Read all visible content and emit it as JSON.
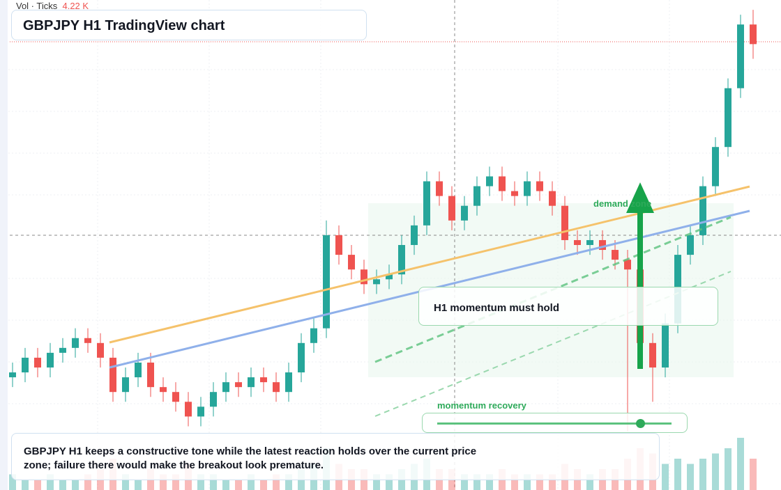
{
  "header": {
    "vol_label": "Vol · Ticks",
    "vol_value": "4.22 K"
  },
  "title": "GBPJPY H1 TradingView chart",
  "annotations": {
    "zone": "demand zone",
    "hold": "H1 momentum must hold",
    "recovery": "momentum recovery"
  },
  "caption": "GBPJPY H1 keeps a constructive tone while the latest reaction holds over the current price zone; failure there would make the breakout look premature.",
  "chart_data": {
    "type": "candlestick",
    "ylim": [
      0,
      100
    ],
    "up_color": "#26a69a",
    "down_color": "#ef5350",
    "open": [
      23,
      24,
      27,
      25,
      28,
      29,
      31,
      30,
      27,
      20,
      23,
      26,
      21,
      20,
      18,
      15,
      17,
      20,
      22,
      21,
      23,
      22,
      20,
      24,
      30,
      33,
      52,
      48,
      45,
      42,
      43,
      44,
      50,
      54,
      63,
      60,
      55,
      58,
      62,
      64,
      61,
      60,
      63,
      61,
      58,
      51,
      50,
      51,
      49,
      47,
      45,
      30,
      25,
      34,
      48,
      52,
      62,
      70,
      82,
      95
    ],
    "high": [
      26,
      29,
      29,
      30,
      31,
      33,
      33,
      32,
      29,
      25,
      28,
      28,
      23,
      22,
      20,
      19,
      22,
      24,
      24,
      25,
      25,
      24,
      26,
      32,
      35,
      55,
      54,
      50,
      47,
      45,
      46,
      52,
      56,
      65,
      65,
      62,
      60,
      64,
      66,
      66,
      63,
      65,
      65,
      63,
      60,
      53,
      53,
      53,
      51,
      49,
      47,
      32,
      36,
      50,
      54,
      64,
      72,
      84,
      97,
      98
    ],
    "low": [
      21,
      22,
      23,
      23,
      26,
      27,
      28,
      25,
      18,
      18,
      21,
      19,
      18,
      16,
      13,
      13,
      15,
      18,
      19,
      19,
      20,
      18,
      18,
      22,
      28,
      31,
      46,
      43,
      40,
      40,
      41,
      42,
      48,
      52,
      58,
      53,
      53,
      56,
      60,
      59,
      58,
      58,
      59,
      56,
      49,
      48,
      48,
      47,
      45,
      12,
      28,
      18,
      23,
      32,
      46,
      50,
      60,
      68,
      80,
      88
    ],
    "close": [
      24,
      27,
      25,
      28,
      29,
      31,
      30,
      27,
      20,
      23,
      26,
      21,
      20,
      18,
      15,
      17,
      20,
      22,
      21,
      23,
      22,
      20,
      24,
      30,
      33,
      52,
      48,
      45,
      42,
      43,
      44,
      50,
      54,
      63,
      60,
      55,
      58,
      62,
      64,
      61,
      60,
      63,
      61,
      58,
      51,
      50,
      51,
      49,
      47,
      45,
      30,
      25,
      34,
      48,
      52,
      62,
      70,
      82,
      95,
      91
    ],
    "volume": [
      3,
      2,
      2,
      3,
      2,
      2,
      3,
      4,
      6,
      3,
      2,
      4,
      3,
      3,
      5,
      3,
      3,
      2,
      2,
      3,
      2,
      3,
      3,
      4,
      5,
      8,
      5,
      4,
      4,
      3,
      3,
      4,
      5,
      6,
      4,
      4,
      3,
      3,
      3,
      4,
      3,
      3,
      3,
      3,
      5,
      4,
      3,
      4,
      4,
      6,
      8,
      7,
      5,
      6,
      5,
      6,
      7,
      8,
      10,
      6
    ]
  }
}
